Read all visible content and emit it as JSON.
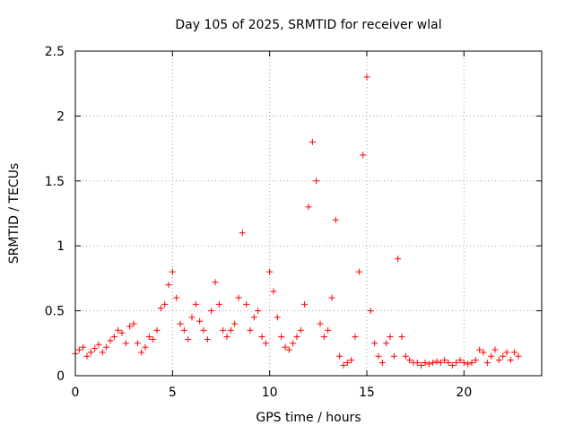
{
  "chart_data": {
    "type": "scatter",
    "title": "Day 105 of 2025, SRMTID for receiver wlal",
    "xlabel": "GPS time / hours",
    "ylabel": "SRMTID / TECUs",
    "xlim": [
      0,
      24
    ],
    "ylim": [
      0,
      2.5
    ],
    "xticks": [
      0,
      5,
      10,
      15,
      20
    ],
    "yticks": [
      0,
      0.5,
      1,
      1.5,
      2,
      2.5
    ],
    "xtick_labels": [
      "0",
      "5",
      "10",
      "15",
      "20"
    ],
    "ytick_labels": [
      "0",
      "0.5",
      "1",
      "1.5",
      "2",
      "2.5"
    ],
    "grid": true,
    "marker": "+",
    "series": [
      {
        "name": "SRMTID",
        "color": "#ff0000",
        "x": [
          0.0,
          0.2,
          0.4,
          0.6,
          0.8,
          1.0,
          1.2,
          1.4,
          1.6,
          1.8,
          2.0,
          2.2,
          2.4,
          2.6,
          2.8,
          3.0,
          3.2,
          3.4,
          3.6,
          3.8,
          4.0,
          4.2,
          4.4,
          4.6,
          4.8,
          5.0,
          5.2,
          5.4,
          5.6,
          5.8,
          6.0,
          6.2,
          6.4,
          6.6,
          6.8,
          7.0,
          7.2,
          7.4,
          7.6,
          7.8,
          8.0,
          8.2,
          8.4,
          8.6,
          8.8,
          9.0,
          9.2,
          9.4,
          9.6,
          9.8,
          10.0,
          10.2,
          10.4,
          10.6,
          10.8,
          11.0,
          11.2,
          11.4,
          11.6,
          11.8,
          12.0,
          12.2,
          12.4,
          12.6,
          12.8,
          13.0,
          13.2,
          13.4,
          13.6,
          13.8,
          14.0,
          14.2,
          14.4,
          14.6,
          14.8,
          15.0,
          15.2,
          15.4,
          15.6,
          15.8,
          16.0,
          16.2,
          16.4,
          16.6,
          16.8,
          17.0,
          17.2,
          17.4,
          17.6,
          17.8,
          18.0,
          18.2,
          18.4,
          18.6,
          18.8,
          19.0,
          19.2,
          19.4,
          19.6,
          19.8,
          20.0,
          20.2,
          20.4,
          20.6,
          20.8,
          21.0,
          21.2,
          21.4,
          21.6,
          21.8,
          22.0,
          22.2,
          22.4,
          22.6,
          22.8
        ],
        "y": [
          0.17,
          0.2,
          0.22,
          0.15,
          0.18,
          0.21,
          0.24,
          0.18,
          0.22,
          0.27,
          0.3,
          0.35,
          0.33,
          0.25,
          0.38,
          0.4,
          0.25,
          0.18,
          0.22,
          0.3,
          0.28,
          0.35,
          0.52,
          0.55,
          0.7,
          0.8,
          0.6,
          0.4,
          0.35,
          0.28,
          0.45,
          0.55,
          0.42,
          0.35,
          0.28,
          0.5,
          0.72,
          0.55,
          0.35,
          0.3,
          0.35,
          0.4,
          0.6,
          1.1,
          0.55,
          0.35,
          0.45,
          0.5,
          0.3,
          0.25,
          0.8,
          0.65,
          0.45,
          0.3,
          0.22,
          0.2,
          0.25,
          0.3,
          0.35,
          0.55,
          1.3,
          1.8,
          1.5,
          0.4,
          0.3,
          0.35,
          0.6,
          1.2,
          0.15,
          0.08,
          0.1,
          0.12,
          0.3,
          0.8,
          1.7,
          2.3,
          0.5,
          0.25,
          0.15,
          0.1,
          0.25,
          0.3,
          0.15,
          0.9,
          0.3,
          0.15,
          0.12,
          0.1,
          0.1,
          0.08,
          0.1,
          0.09,
          0.1,
          0.11,
          0.1,
          0.12,
          0.1,
          0.08,
          0.1,
          0.12,
          0.1,
          0.09,
          0.1,
          0.12,
          0.2,
          0.18,
          0.1,
          0.15,
          0.2,
          0.12,
          0.15,
          0.18,
          0.12,
          0.18,
          0.15
        ]
      }
    ]
  }
}
